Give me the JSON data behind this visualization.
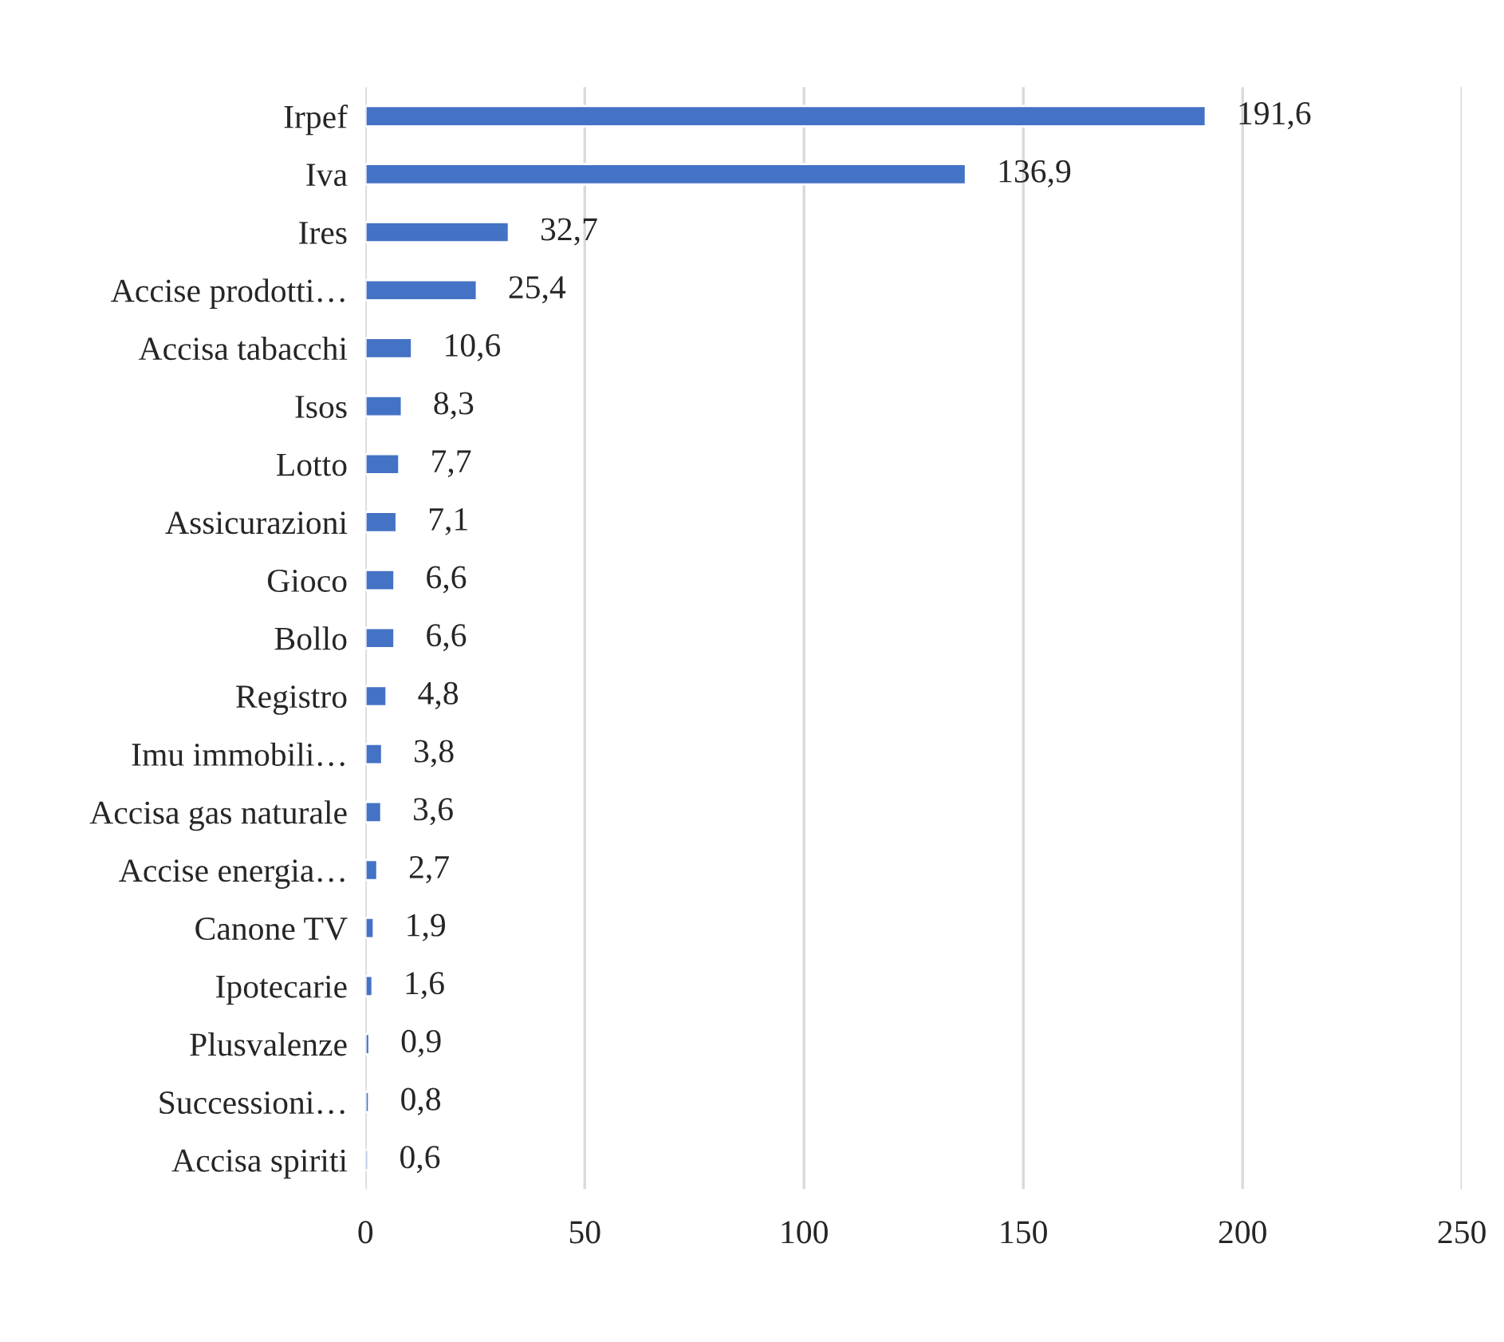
{
  "chart_data": {
    "type": "bar",
    "orientation": "horizontal",
    "categories": [
      "Irpef",
      "Iva",
      "Ires",
      "Accise prodotti…",
      "Accisa tabacchi",
      "Isos",
      "Lotto",
      "Assicurazioni",
      "Gioco",
      "Bollo",
      "Registro",
      "Imu immobili…",
      "Accisa gas naturale",
      "Accise energia…",
      "Canone TV",
      "Ipotecarie",
      "Plusvalenze",
      "Successioni…",
      "Accisa spiriti"
    ],
    "values": [
      191.6,
      136.9,
      32.7,
      25.4,
      10.6,
      8.3,
      7.7,
      7.1,
      6.6,
      6.6,
      4.8,
      3.8,
      3.6,
      2.7,
      1.9,
      1.6,
      0.9,
      0.8,
      0.6
    ],
    "value_labels": [
      "191,6",
      "136,9",
      "32,7",
      "25,4",
      "10,6",
      "8,3",
      "7,7",
      "7,1",
      "6,6",
      "6,6",
      "4,8",
      "3,8",
      "3,6",
      "2,7",
      "1,9",
      "1,6",
      "0,9",
      "0,8",
      "0,6"
    ],
    "color": "#4472c4",
    "xlim": [
      0,
      250
    ],
    "xticks": [
      0,
      50,
      100,
      150,
      200,
      250
    ],
    "grid": "x",
    "legend": false
  }
}
